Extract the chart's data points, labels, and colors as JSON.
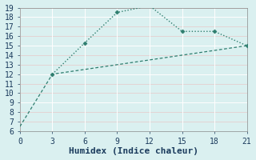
{
  "xlabel": "Humidex (Indice chaleur)",
  "xlim": [
    0,
    21
  ],
  "ylim": [
    6,
    19
  ],
  "xticks": [
    0,
    3,
    6,
    9,
    12,
    15,
    18,
    21
  ],
  "yticks": [
    6,
    7,
    8,
    9,
    10,
    11,
    12,
    13,
    14,
    15,
    16,
    17,
    18,
    19
  ],
  "line1_x": [
    0,
    3,
    6,
    9,
    12,
    15,
    18,
    21
  ],
  "line1_y": [
    6.5,
    12.0,
    12.5,
    13.0,
    13.5,
    14.0,
    14.5,
    15.0
  ],
  "line2_x": [
    3,
    6,
    9,
    12,
    15,
    18,
    21
  ],
  "line2_y": [
    12.0,
    15.3,
    18.5,
    19.2,
    16.5,
    16.5,
    15.0
  ],
  "line_color": "#2e7d6e",
  "bg_color": "#daf0f0",
  "grid_color": "#c0dede",
  "grid_major_color": "#ffffff",
  "font_color": "#1a3a5c",
  "font_family": "monospace",
  "xlabel_fontsize": 8,
  "tick_fontsize": 7
}
